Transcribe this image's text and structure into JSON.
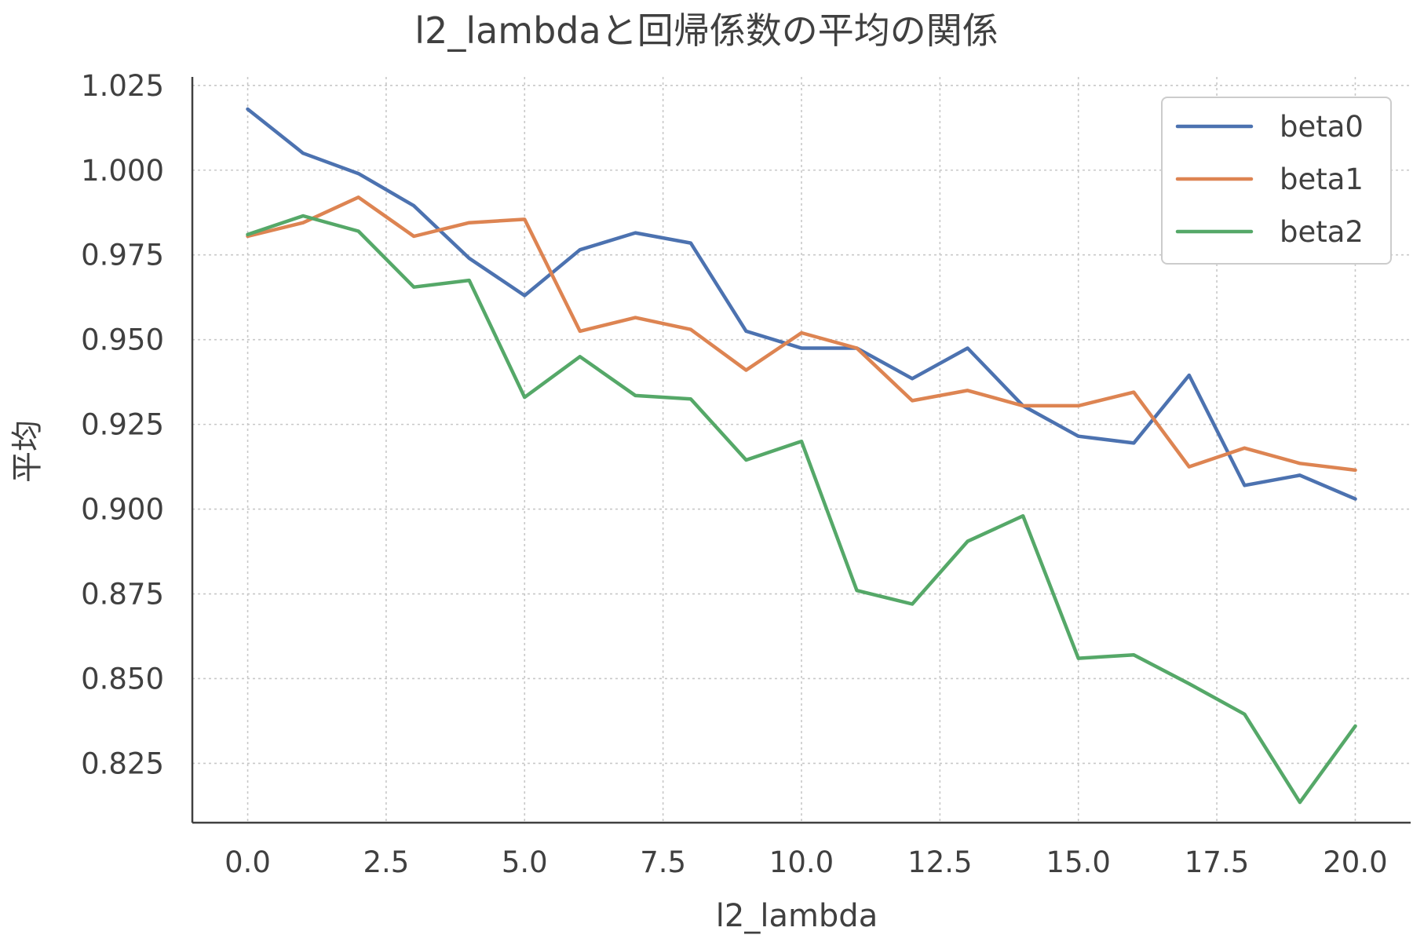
{
  "chart_data": {
    "type": "line",
    "title": "l2_lambdaと回帰係数の平均の関係",
    "xlabel": "l2_lambda",
    "ylabel": "平均",
    "xlim": [
      -1,
      21
    ],
    "ylim": [
      0.8075,
      1.0275
    ],
    "grid": true,
    "legend_position": "top-right",
    "x_ticks": [
      0,
      2.5,
      5,
      7.5,
      10,
      12.5,
      15,
      17.5,
      20
    ],
    "x_tick_labels": [
      "0.0",
      "2.5",
      "5.0",
      "7.5",
      "10.0",
      "12.5",
      "15.0",
      "17.5",
      "20.0"
    ],
    "y_ticks": [
      0.825,
      0.85,
      0.875,
      0.9,
      0.925,
      0.95,
      0.975,
      1.0,
      1.025
    ],
    "y_tick_labels": [
      "0.825",
      "0.850",
      "0.875",
      "0.900",
      "0.925",
      "0.950",
      "0.975",
      "1.000",
      "1.025"
    ],
    "x": [
      0,
      1,
      2,
      3,
      4,
      5,
      6,
      7,
      8,
      9,
      10,
      11,
      12,
      13,
      14,
      15,
      16,
      17,
      18,
      19,
      20
    ],
    "series": [
      {
        "name": "beta0",
        "color": "#4c72b0",
        "values": [
          1.018,
          1.005,
          0.999,
          0.9895,
          0.974,
          0.963,
          0.9765,
          0.9815,
          0.9785,
          0.9525,
          0.9475,
          0.9475,
          0.9385,
          0.9475,
          0.9305,
          0.9215,
          0.9195,
          0.9395,
          0.907,
          0.91,
          0.903
        ]
      },
      {
        "name": "beta1",
        "color": "#dd8452",
        "values": [
          0.9805,
          0.9845,
          0.992,
          0.9805,
          0.9845,
          0.9855,
          0.9525,
          0.9565,
          0.953,
          0.941,
          0.952,
          0.9475,
          0.932,
          0.935,
          0.9305,
          0.9305,
          0.9345,
          0.9125,
          0.918,
          0.9135,
          0.9115
        ]
      },
      {
        "name": "beta2",
        "color": "#55a868",
        "values": [
          0.981,
          0.9865,
          0.982,
          0.9655,
          0.9675,
          0.933,
          0.945,
          0.9335,
          0.9325,
          0.9145,
          0.92,
          0.876,
          0.872,
          0.8905,
          0.898,
          0.856,
          0.857,
          0.8485,
          0.8395,
          0.8135,
          0.836
        ]
      }
    ]
  }
}
